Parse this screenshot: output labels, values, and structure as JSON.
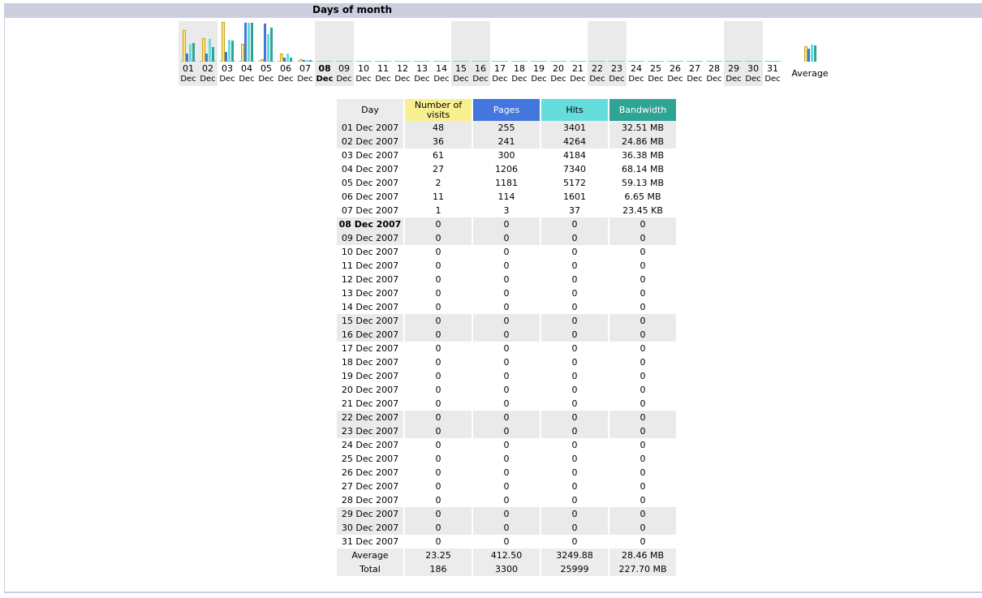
{
  "section": {
    "title": "Days of month"
  },
  "chart_data": {
    "type": "bar",
    "categories": [
      "01",
      "02",
      "03",
      "04",
      "05",
      "06",
      "07",
      "08",
      "09",
      "10",
      "11",
      "12",
      "13",
      "14",
      "15",
      "16",
      "17",
      "18",
      "19",
      "20",
      "21",
      "22",
      "23",
      "24",
      "25",
      "26",
      "27",
      "28",
      "29",
      "30",
      "31"
    ],
    "month_label": "Dec",
    "series": [
      {
        "name": "Number of visits",
        "values": [
          48,
          36,
          61,
          27,
          2,
          11,
          1,
          0,
          0,
          0,
          0,
          0,
          0,
          0,
          0,
          0,
          0,
          0,
          0,
          0,
          0,
          0,
          0,
          0,
          0,
          0,
          0,
          0,
          0,
          0,
          0
        ]
      },
      {
        "name": "Pages",
        "values": [
          255,
          241,
          300,
          1206,
          1181,
          114,
          3,
          0,
          0,
          0,
          0,
          0,
          0,
          0,
          0,
          0,
          0,
          0,
          0,
          0,
          0,
          0,
          0,
          0,
          0,
          0,
          0,
          0,
          0,
          0,
          0
        ]
      },
      {
        "name": "Hits",
        "values": [
          3401,
          4264,
          4184,
          7340,
          5172,
          1601,
          37,
          0,
          0,
          0,
          0,
          0,
          0,
          0,
          0,
          0,
          0,
          0,
          0,
          0,
          0,
          0,
          0,
          0,
          0,
          0,
          0,
          0,
          0,
          0,
          0
        ]
      },
      {
        "name": "Bandwidth",
        "values": [
          32.51,
          24.86,
          36.38,
          68.14,
          59.13,
          6.65,
          0.02,
          0,
          0,
          0,
          0,
          0,
          0,
          0,
          0,
          0,
          0,
          0,
          0,
          0,
          0,
          0,
          0,
          0,
          0,
          0,
          0,
          0,
          0,
          0,
          0
        ]
      }
    ],
    "average": {
      "label": "Average",
      "values": [
        23.25,
        412.5,
        3249.88,
        28.46
      ]
    },
    "highlight_day": "08",
    "weekend_days": [
      "01",
      "02",
      "08",
      "09",
      "15",
      "16",
      "22",
      "23",
      "29",
      "30"
    ],
    "colors": {
      "visits": "#f8e880",
      "pages": "#4477dd",
      "hits": "#66dddd",
      "bandwidth": "#2ea495"
    }
  },
  "table": {
    "headers": {
      "day": "Day",
      "visits": "Number of visits",
      "pages": "Pages",
      "hits": "Hits",
      "bandwidth": "Bandwidth"
    },
    "rows": [
      [
        "01 Dec 2007",
        "48",
        "255",
        "3401",
        "32.51 MB"
      ],
      [
        "02 Dec 2007",
        "36",
        "241",
        "4264",
        "24.86 MB"
      ],
      [
        "03 Dec 2007",
        "61",
        "300",
        "4184",
        "36.38 MB"
      ],
      [
        "04 Dec 2007",
        "27",
        "1206",
        "7340",
        "68.14 MB"
      ],
      [
        "05 Dec 2007",
        "2",
        "1181",
        "5172",
        "59.13 MB"
      ],
      [
        "06 Dec 2007",
        "11",
        "114",
        "1601",
        "6.65 MB"
      ],
      [
        "07 Dec 2007",
        "1",
        "3",
        "37",
        "23.45 KB"
      ],
      [
        "08 Dec 2007",
        "0",
        "0",
        "0",
        "0"
      ],
      [
        "09 Dec 2007",
        "0",
        "0",
        "0",
        "0"
      ],
      [
        "10 Dec 2007",
        "0",
        "0",
        "0",
        "0"
      ],
      [
        "11 Dec 2007",
        "0",
        "0",
        "0",
        "0"
      ],
      [
        "12 Dec 2007",
        "0",
        "0",
        "0",
        "0"
      ],
      [
        "13 Dec 2007",
        "0",
        "0",
        "0",
        "0"
      ],
      [
        "14 Dec 2007",
        "0",
        "0",
        "0",
        "0"
      ],
      [
        "15 Dec 2007",
        "0",
        "0",
        "0",
        "0"
      ],
      [
        "16 Dec 2007",
        "0",
        "0",
        "0",
        "0"
      ],
      [
        "17 Dec 2007",
        "0",
        "0",
        "0",
        "0"
      ],
      [
        "18 Dec 2007",
        "0",
        "0",
        "0",
        "0"
      ],
      [
        "19 Dec 2007",
        "0",
        "0",
        "0",
        "0"
      ],
      [
        "20 Dec 2007",
        "0",
        "0",
        "0",
        "0"
      ],
      [
        "21 Dec 2007",
        "0",
        "0",
        "0",
        "0"
      ],
      [
        "22 Dec 2007",
        "0",
        "0",
        "0",
        "0"
      ],
      [
        "23 Dec 2007",
        "0",
        "0",
        "0",
        "0"
      ],
      [
        "24 Dec 2007",
        "0",
        "0",
        "0",
        "0"
      ],
      [
        "25 Dec 2007",
        "0",
        "0",
        "0",
        "0"
      ],
      [
        "26 Dec 2007",
        "0",
        "0",
        "0",
        "0"
      ],
      [
        "27 Dec 2007",
        "0",
        "0",
        "0",
        "0"
      ],
      [
        "28 Dec 2007",
        "0",
        "0",
        "0",
        "0"
      ],
      [
        "29 Dec 2007",
        "0",
        "0",
        "0",
        "0"
      ],
      [
        "30 Dec 2007",
        "0",
        "0",
        "0",
        "0"
      ],
      [
        "31 Dec 2007",
        "0",
        "0",
        "0",
        "0"
      ]
    ],
    "average_row": [
      "Average",
      "23.25",
      "412.50",
      "3249.88",
      "28.46 MB"
    ],
    "total_row": [
      "Total",
      "186",
      "3300",
      "25999",
      "227.70 MB"
    ]
  }
}
